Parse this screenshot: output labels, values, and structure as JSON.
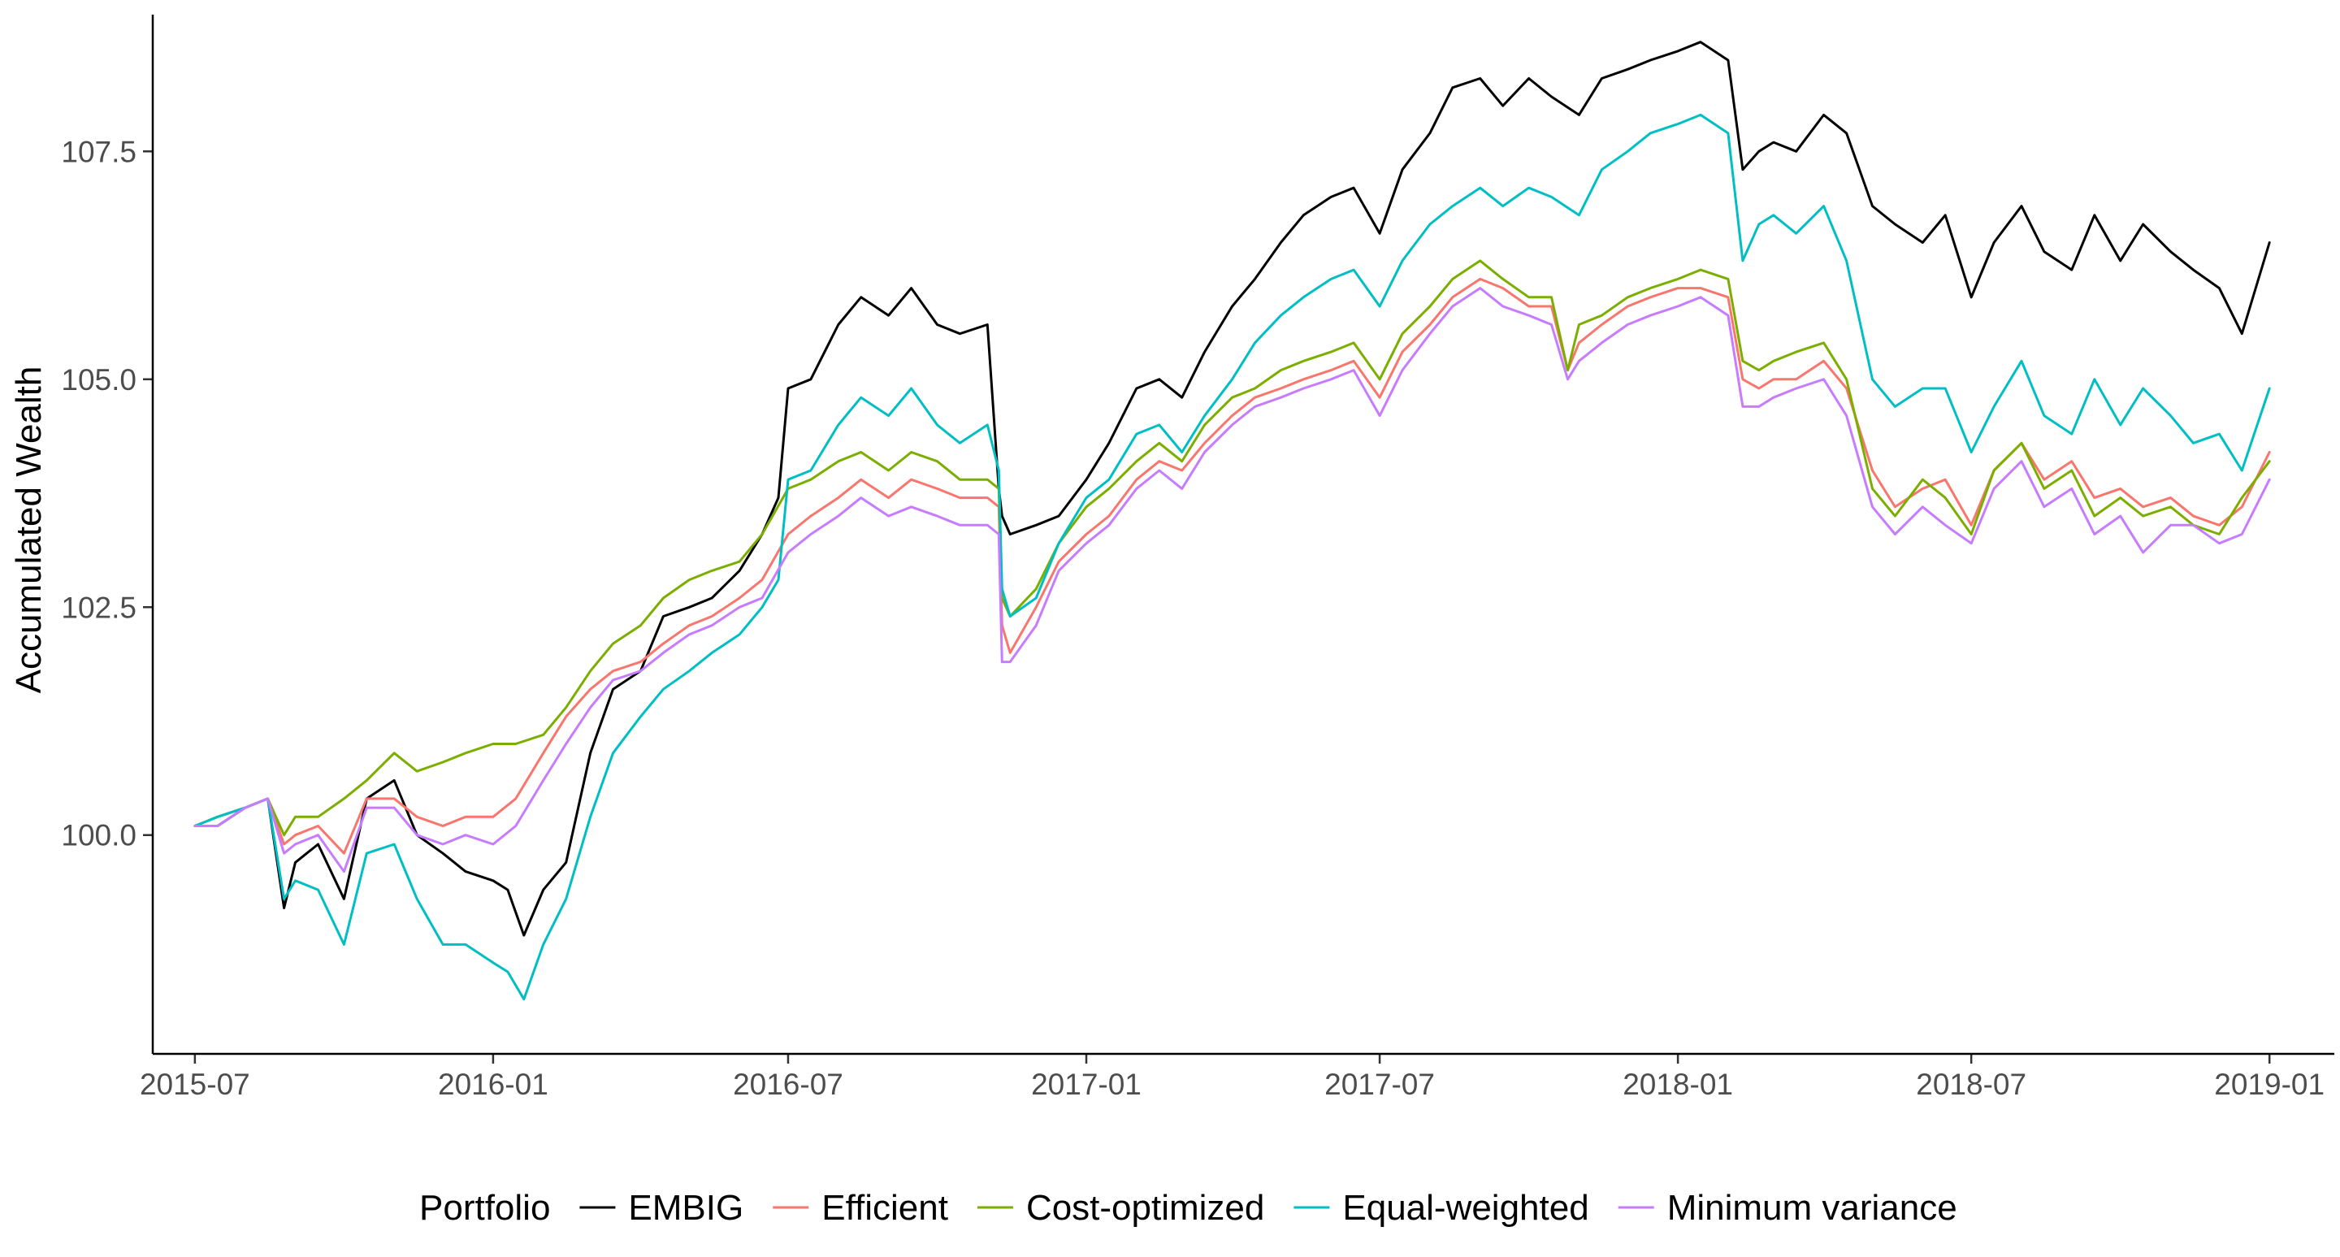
{
  "chart_data": {
    "type": "line",
    "title": "",
    "xlabel": "",
    "ylabel": "Accumulated Wealth",
    "xlim": [
      "2015-06-05",
      "2019-02-10"
    ],
    "ylim": [
      97.6,
      109.0
    ],
    "x_ticks": [
      "2015-07",
      "2016-01",
      "2016-07",
      "2017-01",
      "2017-07",
      "2018-01",
      "2018-07",
      "2019-01"
    ],
    "y_ticks": [
      "100.0",
      "102.5",
      "105.0",
      "107.5"
    ],
    "grid": false,
    "legend": {
      "title": "Portfolio",
      "position": "bottom",
      "entries": [
        "EMBIG",
        "Efficient",
        "Cost-optimized",
        "Equal-weighted",
        "Minimum variance"
      ]
    },
    "series": [
      {
        "name": "EMBIG",
        "color": "#000000",
        "x": [
          "2015-07-01",
          "2015-07-15",
          "2015-08-01",
          "2015-08-15",
          "2015-08-25",
          "2015-09-01",
          "2015-09-15",
          "2015-10-01",
          "2015-10-15",
          "2015-11-01",
          "2015-11-15",
          "2015-12-01",
          "2015-12-15",
          "2016-01-01",
          "2016-01-10",
          "2016-01-20",
          "2016-02-01",
          "2016-02-15",
          "2016-03-01",
          "2016-03-15",
          "2016-04-01",
          "2016-04-15",
          "2016-05-01",
          "2016-05-15",
          "2016-06-01",
          "2016-06-15",
          "2016-06-25",
          "2016-07-01",
          "2016-07-15",
          "2016-08-01",
          "2016-08-15",
          "2016-09-01",
          "2016-09-15",
          "2016-10-01",
          "2016-10-15",
          "2016-11-01",
          "2016-11-08",
          "2016-11-10",
          "2016-11-15",
          "2016-12-01",
          "2016-12-15",
          "2017-01-01",
          "2017-01-15",
          "2017-02-01",
          "2017-02-15",
          "2017-03-01",
          "2017-03-15",
          "2017-04-01",
          "2017-04-15",
          "2017-05-01",
          "2017-05-15",
          "2017-06-01",
          "2017-06-15",
          "2017-07-01",
          "2017-07-15",
          "2017-08-01",
          "2017-08-15",
          "2017-09-01",
          "2017-09-15",
          "2017-10-01",
          "2017-10-15",
          "2017-11-01",
          "2017-11-15",
          "2017-12-01",
          "2017-12-15",
          "2018-01-01",
          "2018-01-15",
          "2018-02-01",
          "2018-02-10",
          "2018-02-20",
          "2018-03-01",
          "2018-03-15",
          "2018-04-01",
          "2018-04-15",
          "2018-05-01",
          "2018-05-15",
          "2018-06-01",
          "2018-06-15",
          "2018-07-01",
          "2018-07-15",
          "2018-08-01",
          "2018-08-15",
          "2018-09-01",
          "2018-09-15",
          "2018-10-01",
          "2018-10-15",
          "2018-11-01",
          "2018-11-15",
          "2018-12-01",
          "2018-12-15",
          "2019-01-01"
        ],
        "values": [
          100.1,
          100.1,
          100.3,
          100.4,
          99.2,
          99.7,
          99.9,
          99.3,
          100.4,
          100.6,
          100.0,
          99.8,
          99.6,
          99.5,
          99.4,
          98.9,
          99.4,
          99.7,
          100.9,
          101.6,
          101.8,
          102.4,
          102.5,
          102.6,
          102.9,
          103.3,
          103.7,
          104.9,
          105.0,
          105.6,
          105.9,
          105.7,
          106.0,
          105.6,
          105.5,
          105.6,
          103.8,
          103.5,
          103.3,
          103.4,
          103.5,
          103.9,
          104.3,
          104.9,
          105.0,
          104.8,
          105.3,
          105.8,
          106.1,
          106.5,
          106.8,
          107.0,
          107.1,
          106.6,
          107.3,
          107.7,
          108.2,
          108.3,
          108.0,
          108.3,
          108.1,
          107.9,
          108.3,
          108.4,
          108.5,
          108.6,
          108.7,
          108.5,
          107.3,
          107.5,
          107.6,
          107.5,
          107.9,
          107.7,
          106.9,
          106.7,
          106.5,
          106.8,
          105.9,
          106.5,
          106.9,
          106.4,
          106.2,
          106.8,
          106.3,
          106.7,
          106.4,
          106.2,
          106.0,
          105.5,
          106.5
        ]
      },
      {
        "name": "Efficient",
        "color": "#F8766D",
        "x": [
          "2015-07-01",
          "2015-07-15",
          "2015-08-01",
          "2015-08-15",
          "2015-08-25",
          "2015-09-01",
          "2015-09-15",
          "2015-10-01",
          "2015-10-15",
          "2015-11-01",
          "2015-11-15",
          "2015-12-01",
          "2015-12-15",
          "2016-01-01",
          "2016-01-15",
          "2016-02-01",
          "2016-02-15",
          "2016-03-01",
          "2016-03-15",
          "2016-04-01",
          "2016-04-15",
          "2016-05-01",
          "2016-05-15",
          "2016-06-01",
          "2016-06-15",
          "2016-07-01",
          "2016-07-15",
          "2016-08-01",
          "2016-08-15",
          "2016-09-01",
          "2016-09-15",
          "2016-10-01",
          "2016-10-15",
          "2016-11-01",
          "2016-11-08",
          "2016-11-10",
          "2016-11-15",
          "2016-12-01",
          "2016-12-15",
          "2017-01-01",
          "2017-01-15",
          "2017-02-01",
          "2017-02-15",
          "2017-03-01",
          "2017-03-15",
          "2017-04-01",
          "2017-04-15",
          "2017-05-01",
          "2017-05-15",
          "2017-06-01",
          "2017-06-15",
          "2017-07-01",
          "2017-07-15",
          "2017-08-01",
          "2017-08-15",
          "2017-09-01",
          "2017-09-15",
          "2017-10-01",
          "2017-10-15",
          "2017-10-25",
          "2017-11-01",
          "2017-11-15",
          "2017-12-01",
          "2017-12-15",
          "2018-01-01",
          "2018-01-15",
          "2018-02-01",
          "2018-02-10",
          "2018-02-20",
          "2018-03-01",
          "2018-03-15",
          "2018-04-01",
          "2018-04-15",
          "2018-05-01",
          "2018-05-15",
          "2018-06-01",
          "2018-06-15",
          "2018-07-01",
          "2018-07-15",
          "2018-08-01",
          "2018-08-15",
          "2018-09-01",
          "2018-09-15",
          "2018-10-01",
          "2018-10-15",
          "2018-11-01",
          "2018-11-15",
          "2018-12-01",
          "2018-12-15",
          "2019-01-01"
        ],
        "values": [
          100.1,
          100.2,
          100.3,
          100.4,
          99.9,
          100.0,
          100.1,
          99.8,
          100.4,
          100.4,
          100.2,
          100.1,
          100.2,
          100.2,
          100.4,
          100.9,
          101.3,
          101.6,
          101.8,
          101.9,
          102.1,
          102.3,
          102.4,
          102.6,
          102.8,
          103.3,
          103.5,
          103.7,
          103.9,
          103.7,
          103.9,
          103.8,
          103.7,
          103.7,
          103.6,
          102.3,
          102.0,
          102.5,
          103.0,
          103.3,
          103.5,
          103.9,
          104.1,
          104.0,
          104.3,
          104.6,
          104.8,
          104.9,
          105.0,
          105.1,
          105.2,
          104.8,
          105.3,
          105.6,
          105.9,
          106.1,
          106.0,
          105.8,
          105.8,
          105.1,
          105.4,
          105.6,
          105.8,
          105.9,
          106.0,
          106.0,
          105.9,
          105.0,
          104.9,
          105.0,
          105.0,
          105.2,
          104.9,
          104.0,
          103.6,
          103.8,
          103.9,
          103.4,
          104.0,
          104.3,
          103.9,
          104.1,
          103.7,
          103.8,
          103.6,
          103.7,
          103.5,
          103.4,
          103.6,
          104.2
        ]
      },
      {
        "name": "Cost-optimized",
        "color": "#7CAE00",
        "x": [
          "2015-07-01",
          "2015-07-15",
          "2015-08-01",
          "2015-08-15",
          "2015-08-25",
          "2015-09-01",
          "2015-09-15",
          "2015-10-01",
          "2015-10-15",
          "2015-11-01",
          "2015-11-15",
          "2015-12-01",
          "2015-12-15",
          "2016-01-01",
          "2016-01-15",
          "2016-02-01",
          "2016-02-15",
          "2016-03-01",
          "2016-03-15",
          "2016-04-01",
          "2016-04-15",
          "2016-05-01",
          "2016-05-15",
          "2016-06-01",
          "2016-06-15",
          "2016-07-01",
          "2016-07-15",
          "2016-08-01",
          "2016-08-15",
          "2016-09-01",
          "2016-09-15",
          "2016-10-01",
          "2016-10-15",
          "2016-11-01",
          "2016-11-08",
          "2016-11-10",
          "2016-11-15",
          "2016-12-01",
          "2016-12-15",
          "2017-01-01",
          "2017-01-15",
          "2017-02-01",
          "2017-02-15",
          "2017-03-01",
          "2017-03-15",
          "2017-04-01",
          "2017-04-15",
          "2017-05-01",
          "2017-05-15",
          "2017-06-01",
          "2017-06-15",
          "2017-07-01",
          "2017-07-15",
          "2017-08-01",
          "2017-08-15",
          "2017-09-01",
          "2017-09-15",
          "2017-10-01",
          "2017-10-15",
          "2017-10-25",
          "2017-11-01",
          "2017-11-15",
          "2017-12-01",
          "2017-12-15",
          "2018-01-01",
          "2018-01-15",
          "2018-02-01",
          "2018-02-10",
          "2018-02-20",
          "2018-03-01",
          "2018-03-15",
          "2018-04-01",
          "2018-04-15",
          "2018-05-01",
          "2018-05-15",
          "2018-06-01",
          "2018-06-15",
          "2018-07-01",
          "2018-07-15",
          "2018-08-01",
          "2018-08-15",
          "2018-09-01",
          "2018-09-15",
          "2018-10-01",
          "2018-10-15",
          "2018-11-01",
          "2018-11-15",
          "2018-12-01",
          "2018-12-15",
          "2019-01-01"
        ],
        "values": [
          100.1,
          100.2,
          100.3,
          100.4,
          100.0,
          100.2,
          100.2,
          100.4,
          100.6,
          100.9,
          100.7,
          100.8,
          100.9,
          101.0,
          101.0,
          101.1,
          101.4,
          101.8,
          102.1,
          102.3,
          102.6,
          102.8,
          102.9,
          103.0,
          103.3,
          103.8,
          103.9,
          104.1,
          104.2,
          104.0,
          104.2,
          104.1,
          103.9,
          103.9,
          103.8,
          102.6,
          102.4,
          102.7,
          103.2,
          103.6,
          103.8,
          104.1,
          104.3,
          104.1,
          104.5,
          104.8,
          104.9,
          105.1,
          105.2,
          105.3,
          105.4,
          105.0,
          105.5,
          105.8,
          106.1,
          106.3,
          106.1,
          105.9,
          105.9,
          105.1,
          105.6,
          105.7,
          105.9,
          106.0,
          106.1,
          106.2,
          106.1,
          105.2,
          105.1,
          105.2,
          105.3,
          105.4,
          105.0,
          103.8,
          103.5,
          103.9,
          103.7,
          103.3,
          104.0,
          104.3,
          103.8,
          104.0,
          103.5,
          103.7,
          103.5,
          103.6,
          103.4,
          103.3,
          103.7,
          104.1
        ]
      },
      {
        "name": "Equal-weighted",
        "color": "#00BFC4",
        "x": [
          "2015-07-01",
          "2015-07-15",
          "2015-08-01",
          "2015-08-15",
          "2015-08-25",
          "2015-09-01",
          "2015-09-15",
          "2015-10-01",
          "2015-10-15",
          "2015-11-01",
          "2015-11-15",
          "2015-12-01",
          "2015-12-15",
          "2016-01-01",
          "2016-01-10",
          "2016-01-20",
          "2016-02-01",
          "2016-02-15",
          "2016-03-01",
          "2016-03-15",
          "2016-04-01",
          "2016-04-15",
          "2016-05-01",
          "2016-05-15",
          "2016-06-01",
          "2016-06-15",
          "2016-06-25",
          "2016-07-01",
          "2016-07-15",
          "2016-08-01",
          "2016-08-15",
          "2016-09-01",
          "2016-09-15",
          "2016-10-01",
          "2016-10-15",
          "2016-11-01",
          "2016-11-08",
          "2016-11-10",
          "2016-11-15",
          "2016-12-01",
          "2016-12-15",
          "2017-01-01",
          "2017-01-15",
          "2017-02-01",
          "2017-02-15",
          "2017-03-01",
          "2017-03-15",
          "2017-04-01",
          "2017-04-15",
          "2017-05-01",
          "2017-05-15",
          "2017-06-01",
          "2017-06-15",
          "2017-07-01",
          "2017-07-15",
          "2017-08-01",
          "2017-08-15",
          "2017-09-01",
          "2017-09-15",
          "2017-10-01",
          "2017-10-15",
          "2017-11-01",
          "2017-11-15",
          "2017-12-01",
          "2017-12-15",
          "2018-01-01",
          "2018-01-15",
          "2018-02-01",
          "2018-02-10",
          "2018-02-20",
          "2018-03-01",
          "2018-03-15",
          "2018-04-01",
          "2018-04-15",
          "2018-05-01",
          "2018-05-15",
          "2018-06-01",
          "2018-06-15",
          "2018-07-01",
          "2018-07-15",
          "2018-08-01",
          "2018-08-15",
          "2018-09-01",
          "2018-09-15",
          "2018-10-01",
          "2018-10-15",
          "2018-11-01",
          "2018-11-15",
          "2018-12-01",
          "2018-12-15",
          "2019-01-01"
        ],
        "values": [
          100.1,
          100.2,
          100.3,
          100.4,
          99.3,
          99.5,
          99.4,
          98.8,
          99.8,
          99.9,
          99.3,
          98.8,
          98.8,
          98.6,
          98.5,
          98.2,
          98.8,
          99.3,
          100.2,
          100.9,
          101.3,
          101.6,
          101.8,
          102.0,
          102.2,
          102.5,
          102.8,
          103.9,
          104.0,
          104.5,
          104.8,
          104.6,
          104.9,
          104.5,
          104.3,
          104.5,
          104.0,
          102.7,
          102.4,
          102.6,
          103.2,
          103.7,
          103.9,
          104.4,
          104.5,
          104.2,
          104.6,
          105.0,
          105.4,
          105.7,
          105.9,
          106.1,
          106.2,
          105.8,
          106.3,
          106.7,
          106.9,
          107.1,
          106.9,
          107.1,
          107.0,
          106.8,
          107.3,
          107.5,
          107.7,
          107.8,
          107.9,
          107.7,
          106.3,
          106.7,
          106.8,
          106.6,
          106.9,
          106.3,
          105.0,
          104.7,
          104.9,
          104.9,
          104.2,
          104.7,
          105.2,
          104.6,
          104.4,
          105.0,
          104.5,
          104.9,
          104.6,
          104.3,
          104.4,
          104.0,
          104.9
        ]
      },
      {
        "name": "Minimum variance",
        "color": "#C77CFF",
        "x": [
          "2015-07-01",
          "2015-07-15",
          "2015-08-01",
          "2015-08-15",
          "2015-08-25",
          "2015-09-01",
          "2015-09-15",
          "2015-10-01",
          "2015-10-15",
          "2015-11-01",
          "2015-11-15",
          "2015-12-01",
          "2015-12-15",
          "2016-01-01",
          "2016-01-15",
          "2016-02-01",
          "2016-02-15",
          "2016-03-01",
          "2016-03-15",
          "2016-04-01",
          "2016-04-15",
          "2016-05-01",
          "2016-05-15",
          "2016-06-01",
          "2016-06-15",
          "2016-07-01",
          "2016-07-15",
          "2016-08-01",
          "2016-08-15",
          "2016-09-01",
          "2016-09-15",
          "2016-10-01",
          "2016-10-15",
          "2016-11-01",
          "2016-11-08",
          "2016-11-10",
          "2016-11-15",
          "2016-12-01",
          "2016-12-15",
          "2017-01-01",
          "2017-01-15",
          "2017-02-01",
          "2017-02-15",
          "2017-03-01",
          "2017-03-15",
          "2017-04-01",
          "2017-04-15",
          "2017-05-01",
          "2017-05-15",
          "2017-06-01",
          "2017-06-15",
          "2017-07-01",
          "2017-07-15",
          "2017-08-01",
          "2017-08-15",
          "2017-09-01",
          "2017-09-15",
          "2017-10-01",
          "2017-10-15",
          "2017-10-25",
          "2017-11-01",
          "2017-11-15",
          "2017-12-01",
          "2017-12-15",
          "2018-01-01",
          "2018-01-15",
          "2018-02-01",
          "2018-02-10",
          "2018-02-20",
          "2018-03-01",
          "2018-03-15",
          "2018-04-01",
          "2018-04-15",
          "2018-05-01",
          "2018-05-15",
          "2018-06-01",
          "2018-06-15",
          "2018-07-01",
          "2018-07-15",
          "2018-08-01",
          "2018-08-15",
          "2018-09-01",
          "2018-09-15",
          "2018-10-01",
          "2018-10-15",
          "2018-11-01",
          "2018-11-15",
          "2018-12-01",
          "2018-12-15",
          "2019-01-01"
        ],
        "values": [
          100.1,
          100.1,
          100.3,
          100.4,
          99.8,
          99.9,
          100.0,
          99.6,
          100.3,
          100.3,
          100.0,
          99.9,
          100.0,
          99.9,
          100.1,
          100.6,
          101.0,
          101.4,
          101.7,
          101.8,
          102.0,
          102.2,
          102.3,
          102.5,
          102.6,
          103.1,
          103.3,
          103.5,
          103.7,
          103.5,
          103.6,
          103.5,
          103.4,
          103.4,
          103.3,
          101.9,
          101.9,
          102.3,
          102.9,
          103.2,
          103.4,
          103.8,
          104.0,
          103.8,
          104.2,
          104.5,
          104.7,
          104.8,
          104.9,
          105.0,
          105.1,
          104.6,
          105.1,
          105.5,
          105.8,
          106.0,
          105.8,
          105.7,
          105.6,
          105.0,
          105.2,
          105.4,
          105.6,
          105.7,
          105.8,
          105.9,
          105.7,
          104.7,
          104.7,
          104.8,
          104.9,
          105.0,
          104.6,
          103.6,
          103.3,
          103.6,
          103.4,
          103.2,
          103.8,
          104.1,
          103.6,
          103.8,
          103.3,
          103.5,
          103.1,
          103.4,
          103.4,
          103.2,
          103.3,
          103.9
        ]
      }
    ]
  }
}
